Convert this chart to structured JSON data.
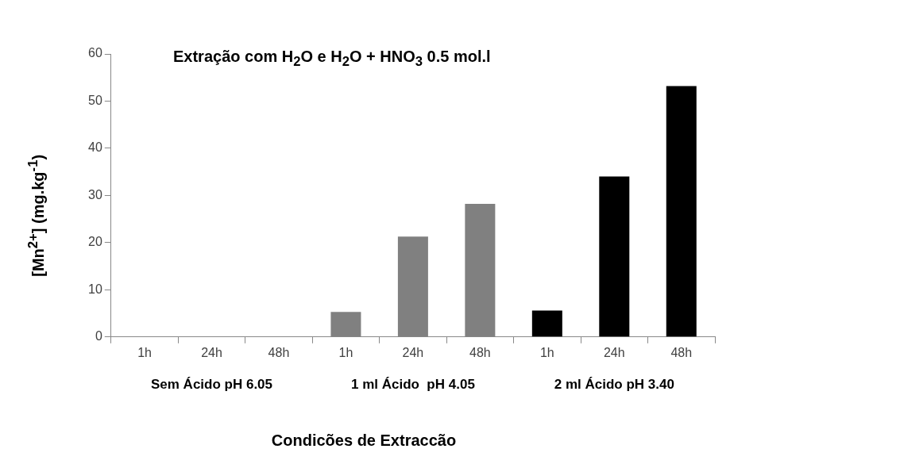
{
  "chart_data": {
    "type": "bar",
    "title": "Extração com H$_{2}$O e H$_{2}$O + HNO$_{3}$ 0.5 mol.l",
    "xlabel": "Condicões de Extraccão",
    "ylabel": "[Mn$^{2+}$] (mg.kg$^{-1}$)",
    "categories": [
      "1h",
      "24h",
      "48h",
      "1h",
      "24h",
      "48h",
      "1h",
      "24h",
      "48h"
    ],
    "values": [
      0,
      0,
      0,
      5.3,
      21.3,
      28.2,
      5.6,
      34.0,
      53.2
    ],
    "colors": [
      "#808080",
      "#808080",
      "#808080",
      "#808080",
      "#808080",
      "#808080",
      "#000000",
      "#000000",
      "#000000"
    ],
    "ylim": [
      0,
      60
    ],
    "yticks": [
      0,
      10,
      20,
      30,
      40,
      50,
      60
    ],
    "grid": false,
    "legend": false,
    "annotations": [
      "Sem Ácido pH 6.05",
      "1 ml Ácido  pH 4.05",
      "2 ml Ácido pH 3.40"
    ]
  }
}
